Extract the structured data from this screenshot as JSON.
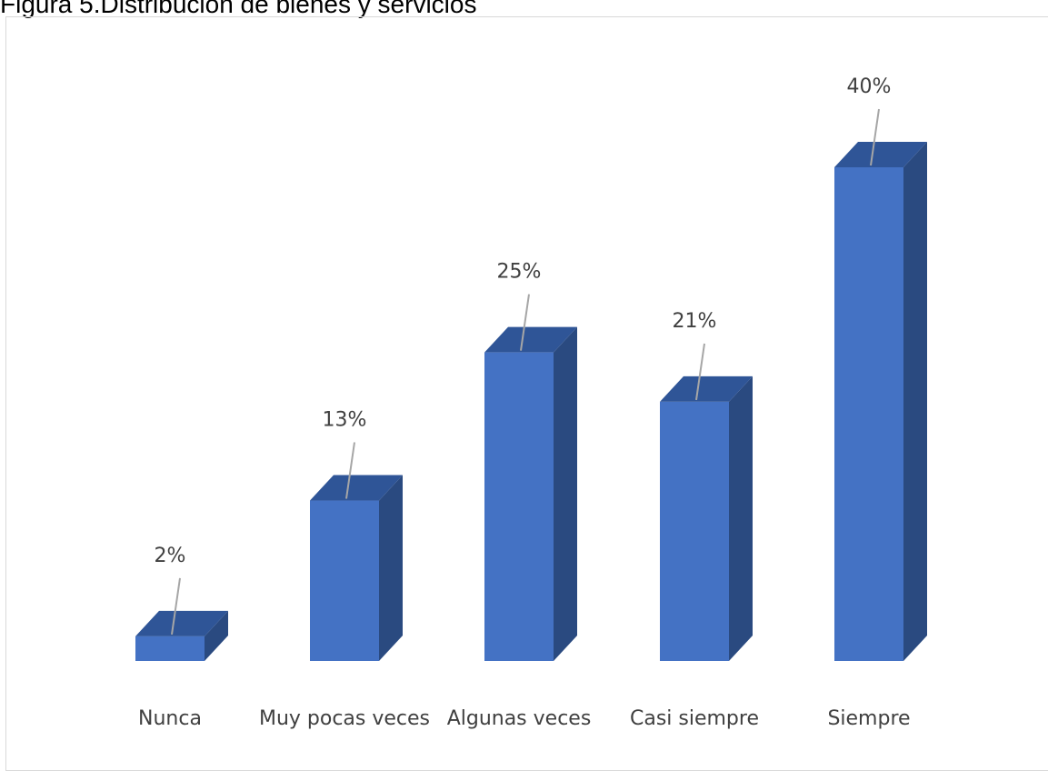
{
  "figure": {
    "title": "Figura 5.Distribución de bienes y servicios"
  },
  "colors": {
    "bar_front": "#4472C4",
    "bar_top": "#2F5597",
    "bar_side": "#2A4A80",
    "leader_line": "#A6A6A6",
    "label_text": "#404040",
    "frame_border": "#D9D9D9"
  },
  "chart_data": {
    "type": "bar",
    "style": "3d-column",
    "title": "",
    "xlabel": "",
    "ylabel": "",
    "categories": [
      "Nunca",
      "Muy pocas veces",
      "Algunas veces",
      "Casi siempre",
      "Siempre"
    ],
    "values": [
      2,
      13,
      25,
      21,
      40
    ],
    "value_labels": [
      "2%",
      "13%",
      "25%",
      "21%",
      "40%"
    ],
    "unit": "%",
    "ylim": [
      0,
      40
    ],
    "grid": false,
    "legend": "none"
  }
}
